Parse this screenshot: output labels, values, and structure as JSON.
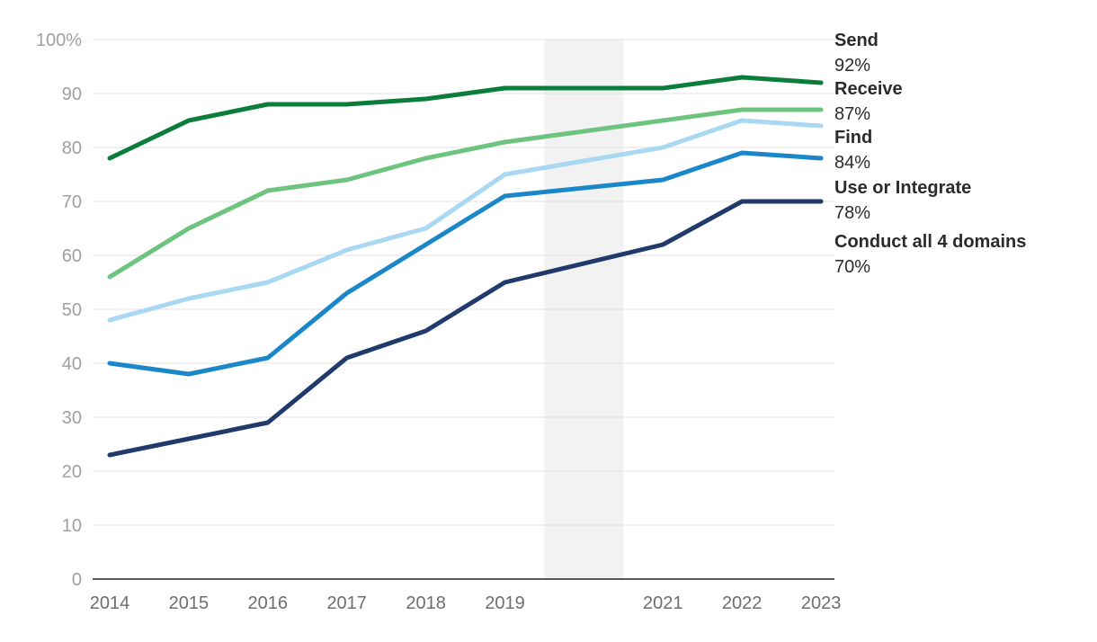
{
  "chart_data": {
    "type": "line",
    "title": "",
    "xlabel": "",
    "ylabel": "",
    "x": [
      2014,
      2015,
      2016,
      2017,
      2018,
      2019,
      2021,
      2022,
      2023
    ],
    "x_tick_labels": [
      "2014",
      "2015",
      "2016",
      "2017",
      "2018",
      "2019",
      "2021",
      "2022",
      "2023"
    ],
    "ylim": [
      0,
      100
    ],
    "y_ticks": [
      0,
      10,
      20,
      30,
      40,
      50,
      60,
      70,
      80,
      90,
      100
    ],
    "y_tick_labels": [
      "0",
      "10",
      "20",
      "30",
      "40",
      "50",
      "60",
      "70",
      "80",
      "90",
      "100%"
    ],
    "grid": true,
    "shaded_gap": {
      "from": 2019.5,
      "to": 2020.5,
      "color": "#f2f2f2"
    },
    "legend_placement": "right",
    "series": [
      {
        "name": "Send",
        "color": "#0a7d3a",
        "values": [
          78,
          85,
          88,
          88,
          89,
          91,
          91,
          93,
          92
        ],
        "end_label": "92%"
      },
      {
        "name": "Receive",
        "color": "#6cc47e",
        "values": [
          56,
          65,
          72,
          74,
          78,
          81,
          85,
          87,
          87
        ],
        "end_label": "87%"
      },
      {
        "name": "Find",
        "color": "#a8d8f2",
        "values": [
          48,
          52,
          55,
          61,
          65,
          75,
          80,
          85,
          84
        ],
        "end_label": "84%"
      },
      {
        "name": "Use or Integrate",
        "color": "#1b87c9",
        "values": [
          40,
          38,
          41,
          53,
          62,
          71,
          74,
          79,
          78
        ],
        "end_label": "78%"
      },
      {
        "name": "Conduct all 4 domains",
        "color": "#1f3a6b",
        "values": [
          23,
          26,
          29,
          41,
          46,
          55,
          62,
          70,
          70
        ],
        "end_label": "70%"
      }
    ]
  }
}
